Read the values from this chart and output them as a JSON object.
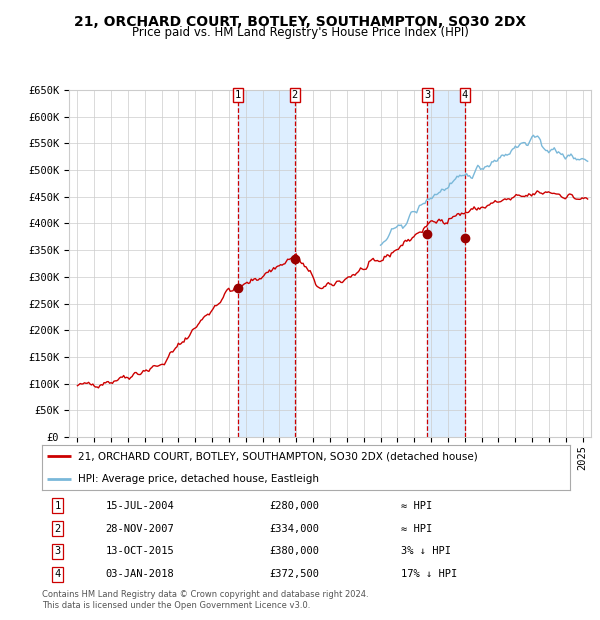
{
  "title": "21, ORCHARD COURT, BOTLEY, SOUTHAMPTON, SO30 2DX",
  "subtitle": "Price paid vs. HM Land Registry's House Price Index (HPI)",
  "ylim": [
    0,
    650000
  ],
  "yticks": [
    0,
    50000,
    100000,
    150000,
    200000,
    250000,
    300000,
    350000,
    400000,
    450000,
    500000,
    550000,
    600000,
    650000
  ],
  "ytick_labels": [
    "£0",
    "£50K",
    "£100K",
    "£150K",
    "£200K",
    "£250K",
    "£300K",
    "£350K",
    "£400K",
    "£450K",
    "£500K",
    "£550K",
    "£600K",
    "£650K"
  ],
  "xlim_start": 1994.5,
  "xlim_end": 2025.5,
  "hpi_color": "#7ab8d9",
  "price_color": "#cc0000",
  "marker_color": "#990000",
  "background_color": "#ffffff",
  "grid_color": "#cccccc",
  "shade_color": "#ddeeff",
  "transactions": [
    {
      "num": 1,
      "date_label": "15-JUL-2004",
      "price": 280000,
      "year": 2004.54,
      "hpi_note": "≈ HPI"
    },
    {
      "num": 2,
      "date_label": "28-NOV-2007",
      "price": 334000,
      "year": 2007.91,
      "hpi_note": "≈ HPI"
    },
    {
      "num": 3,
      "date_label": "13-OCT-2015",
      "price": 380000,
      "year": 2015.78,
      "hpi_note": "3% ↓ HPI"
    },
    {
      "num": 4,
      "date_label": "03-JAN-2018",
      "price": 372500,
      "year": 2018.01,
      "hpi_note": "17% ↓ HPI"
    }
  ],
  "legend_property_label": "21, ORCHARD COURT, BOTLEY, SOUTHAMPTON, SO30 2DX (detached house)",
  "legend_hpi_label": "HPI: Average price, detached house, Eastleigh",
  "footnote": "Contains HM Land Registry data © Crown copyright and database right 2024.\nThis data is licensed under the Open Government Licence v3.0.",
  "title_fontsize": 10,
  "subtitle_fontsize": 8.5,
  "tick_fontsize": 7.5,
  "legend_fontsize": 7.5,
  "table_fontsize": 7.5
}
